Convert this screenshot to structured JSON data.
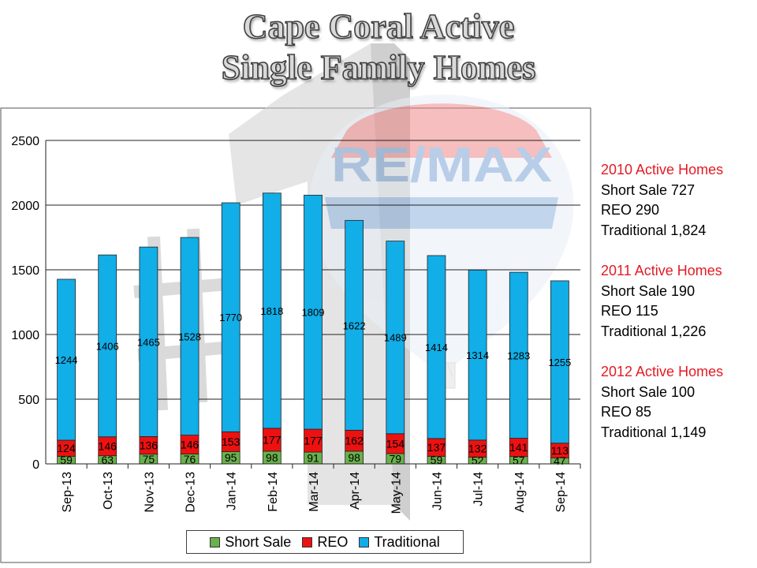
{
  "title": {
    "line1": "Cape Coral Active",
    "line2": "Single Family Homes"
  },
  "colors": {
    "short_sale": "#6ab04c",
    "reo": "#ee1111",
    "traditional": "#11aee8",
    "title_fill": "#d9d9d9",
    "side_header": "#e31b23"
  },
  "background_logo": {
    "text": "RE/MAX",
    "rank_mark": "#1"
  },
  "chart_data": {
    "type": "bar",
    "stacked": true,
    "categories": [
      "Sep-13",
      "Oct-13",
      "Nov-13",
      "Dec-13",
      "Jan-14",
      "Feb-14",
      "Mar-14",
      "Apr-14",
      "May-14",
      "Jun-14",
      "Jul-14",
      "Aug-14",
      "Sep-14"
    ],
    "series": [
      {
        "name": "Short Sale",
        "color": "#6ab04c",
        "values": [
          59,
          63,
          75,
          76,
          95,
          98,
          91,
          98,
          79,
          59,
          52,
          57,
          47
        ]
      },
      {
        "name": "REO",
        "color": "#ee1111",
        "values": [
          124,
          146,
          136,
          146,
          153,
          177,
          177,
          162,
          154,
          137,
          132,
          141,
          113
        ]
      },
      {
        "name": "Traditional",
        "color": "#11aee8",
        "values": [
          1244,
          1406,
          1465,
          1528,
          1770,
          1818,
          1809,
          1622,
          1489,
          1414,
          1314,
          1283,
          1255
        ]
      }
    ],
    "ylim": [
      0,
      2500
    ],
    "yticks": [
      0,
      500,
      1000,
      1500,
      2000,
      2500
    ],
    "grid": true,
    "legend_position": "bottom"
  },
  "sidebar": {
    "groups": [
      {
        "header": "2010 Active Homes",
        "lines": [
          "Short Sale 727",
          "REO 290",
          "Traditional 1,824"
        ]
      },
      {
        "header": "2011  Active Homes",
        "lines": [
          "Short Sale 190",
          "REO 115",
          "Traditional 1,226"
        ]
      },
      {
        "header": "2012  Active Homes",
        "lines": [
          "Short Sale 100",
          "REO 85",
          "Traditional 1,149"
        ]
      }
    ]
  }
}
